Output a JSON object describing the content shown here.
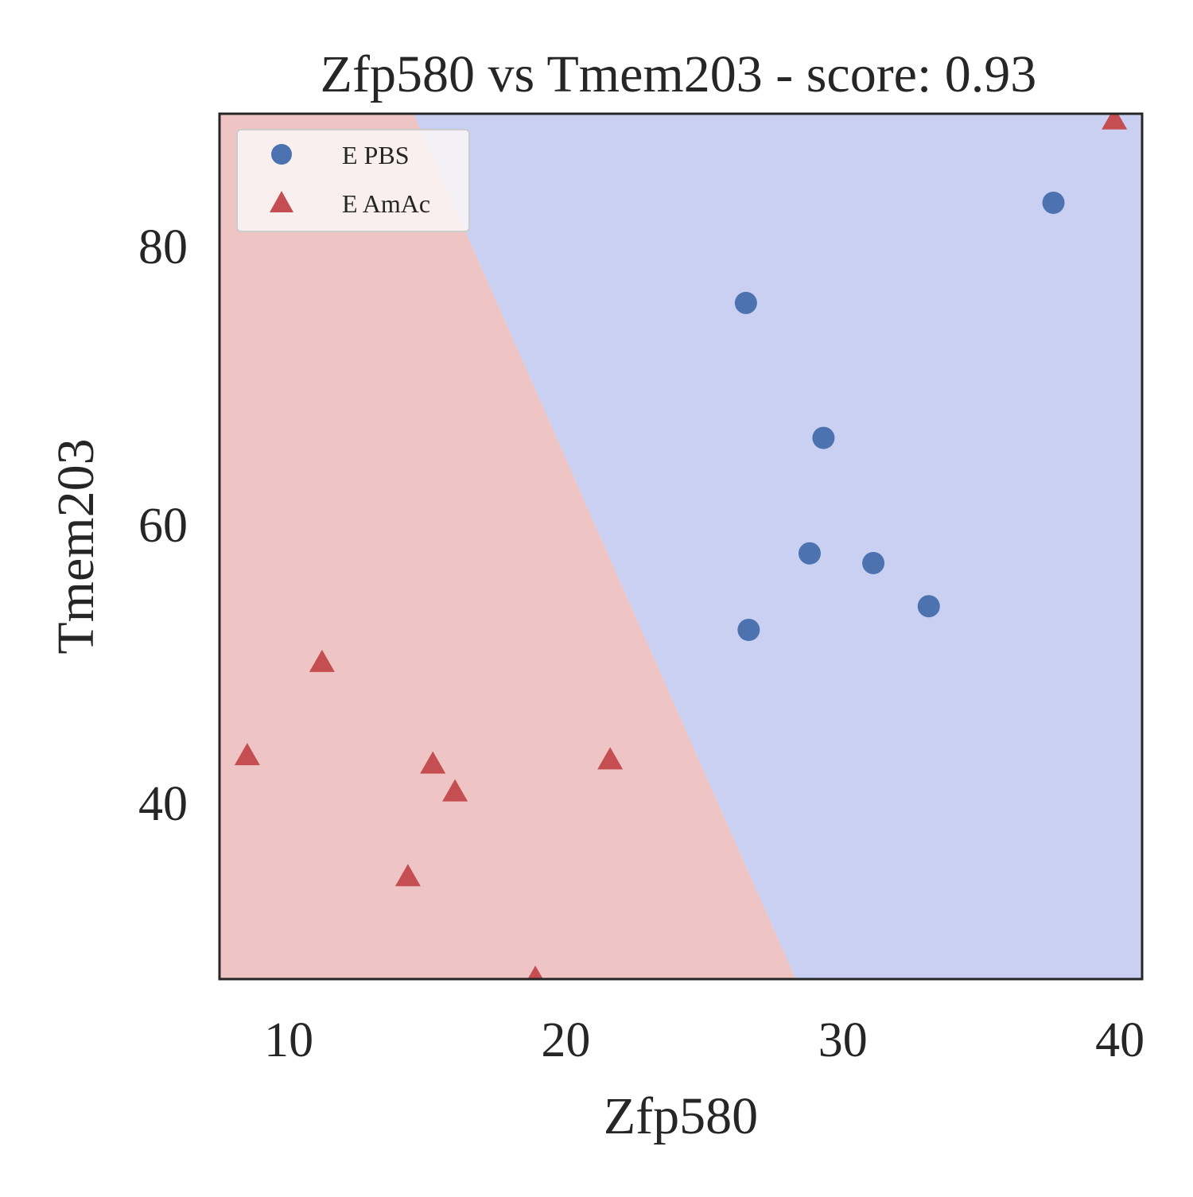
{
  "chart_data": {
    "type": "scatter",
    "title": "Zfp580 vs Tmem203 - score: 0.93",
    "xlabel": "Zfp580",
    "ylabel": "Tmem203",
    "xlim": [
      7.5,
      40.8
    ],
    "ylim": [
      27.3,
      89.5
    ],
    "xticks": [
      10,
      20,
      30,
      40
    ],
    "yticks": [
      40,
      60,
      80
    ],
    "grid": false,
    "legend_position": "top-left",
    "decision_boundary": {
      "description": "linear classifier regions",
      "line": [
        [
          14.5,
          89.5
        ],
        [
          28.3,
          27.3
        ]
      ],
      "region_left_class": "E AmAc",
      "region_right_class": "E PBS",
      "region_left_color": "#eec4c4",
      "region_right_color": "#c9d0f1"
    },
    "series": [
      {
        "name": "E PBS",
        "marker": "circle",
        "color": "#4c72b0",
        "points": [
          [
            37.6,
            83.1
          ],
          [
            26.5,
            75.9
          ],
          [
            29.3,
            66.2
          ],
          [
            28.8,
            57.9
          ],
          [
            31.1,
            57.2
          ],
          [
            33.1,
            54.1
          ],
          [
            26.6,
            52.4
          ]
        ]
      },
      {
        "name": "E AmAc",
        "marker": "triangle",
        "color": "#c44e52",
        "points": [
          [
            39.8,
            89.0
          ],
          [
            11.2,
            50.0
          ],
          [
            8.5,
            43.3
          ],
          [
            15.2,
            42.7
          ],
          [
            21.6,
            43.0
          ],
          [
            16.0,
            40.7
          ],
          [
            14.3,
            34.6
          ],
          [
            18.9,
            27.3
          ]
        ]
      }
    ]
  }
}
